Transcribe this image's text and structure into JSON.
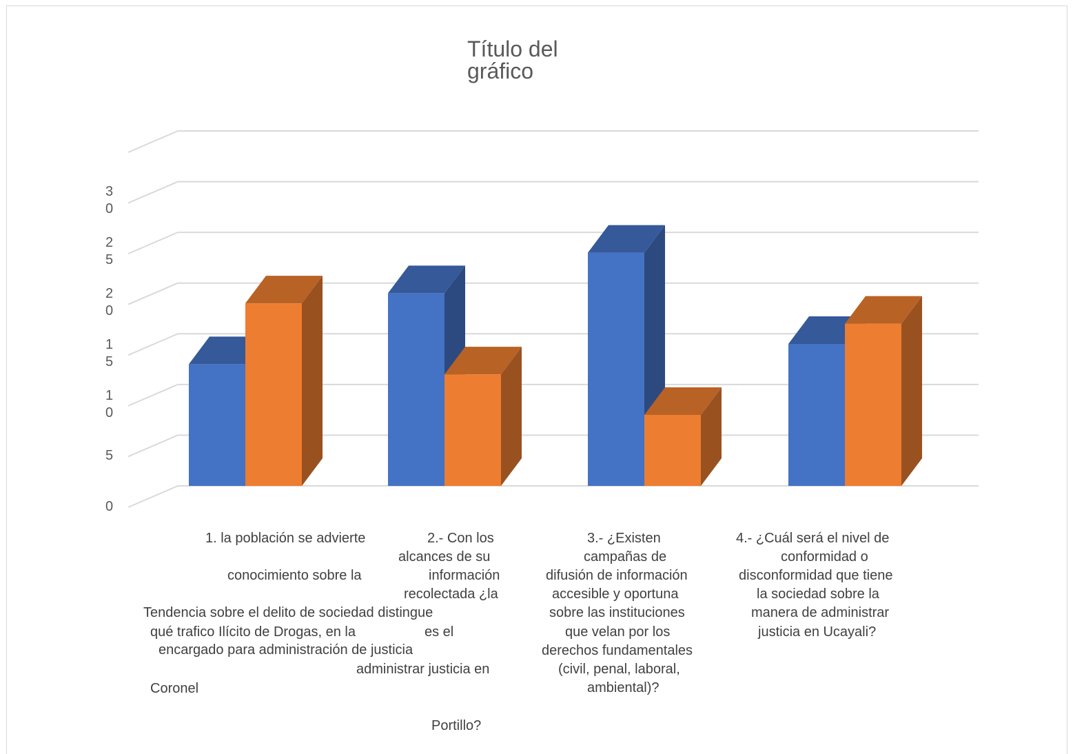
{
  "chart_data": {
    "type": "bar",
    "title": "Título del\ngráfico",
    "xlabel": "",
    "ylabel": "",
    "ylim": [
      0,
      35
    ],
    "yticks": [
      "3\n0",
      "2\n5",
      "2\n0",
      "1\n5",
      "1\n0",
      "5",
      "0"
    ],
    "categories": [
      "1. la población se advierte conocimiento sobre la Tendencia sobre el delito de qué trafico Ilícito de Drogas, en la encargado para administración de justicia Coronel",
      "2.- Con los alcances de su información recolectada ¿la sociedad distingue es el administrar justicia en Portillo?",
      "3.- ¿Existen campañas de difusión de información accesible y oportuna sobre las instituciones que velan por los derechos fundamentales (civil, penal, laboral, ambiental)?",
      "4.- ¿Cuál será el nivel de conformidad o disconformidad que tiene la sociedad sobre la manera de administrar justicia en Ucayali?"
    ],
    "series": [
      {
        "values": [
          12,
          19,
          23,
          14
        ],
        "color": "#4472c4"
      },
      {
        "values": [
          18,
          11,
          7,
          16
        ],
        "color": "#ed7d31"
      }
    ],
    "grid": true,
    "legend": "none"
  },
  "labels": {
    "cat1": [
      {
        "t": "1. la población se advierte"
      },
      {
        "t": "conocimiento sobre la"
      },
      {
        "t": "Tendencia sobre el delito de sociedad distingue"
      },
      {
        "t": "qué trafico Ilícito de Drogas, en la                  es el"
      },
      {
        "t": "encargado para administración de justicia"
      },
      {
        "t": "Coronel"
      }
    ],
    "cat2": [
      {
        "t": "2.- Con los"
      },
      {
        "t": "alcances de su"
      },
      {
        "t": "información"
      },
      {
        "t": "recolectada ¿la"
      },
      {
        "t": "administrar justicia en"
      },
      {
        "t": "Portillo?"
      }
    ],
    "cat3": [
      {
        "t": "3.- ¿Existen"
      },
      {
        "t": "campañas de"
      },
      {
        "t": "difusión de información"
      },
      {
        "t": "accesible y oportuna"
      },
      {
        "t": "sobre las instituciones"
      },
      {
        "t": "que velan por los"
      },
      {
        "t": "derechos fundamentales"
      },
      {
        "t": "(civil, penal, laboral,"
      },
      {
        "t": "ambiental)?"
      }
    ],
    "cat4": [
      {
        "t": "4.- ¿Cuál será el nivel de"
      },
      {
        "t": "conformidad o"
      },
      {
        "t": "disconformidad que tiene"
      },
      {
        "t": "la sociedad sobre la"
      },
      {
        "t": "manera de administrar"
      },
      {
        "t": "justicia en Ucayali?"
      }
    ]
  }
}
